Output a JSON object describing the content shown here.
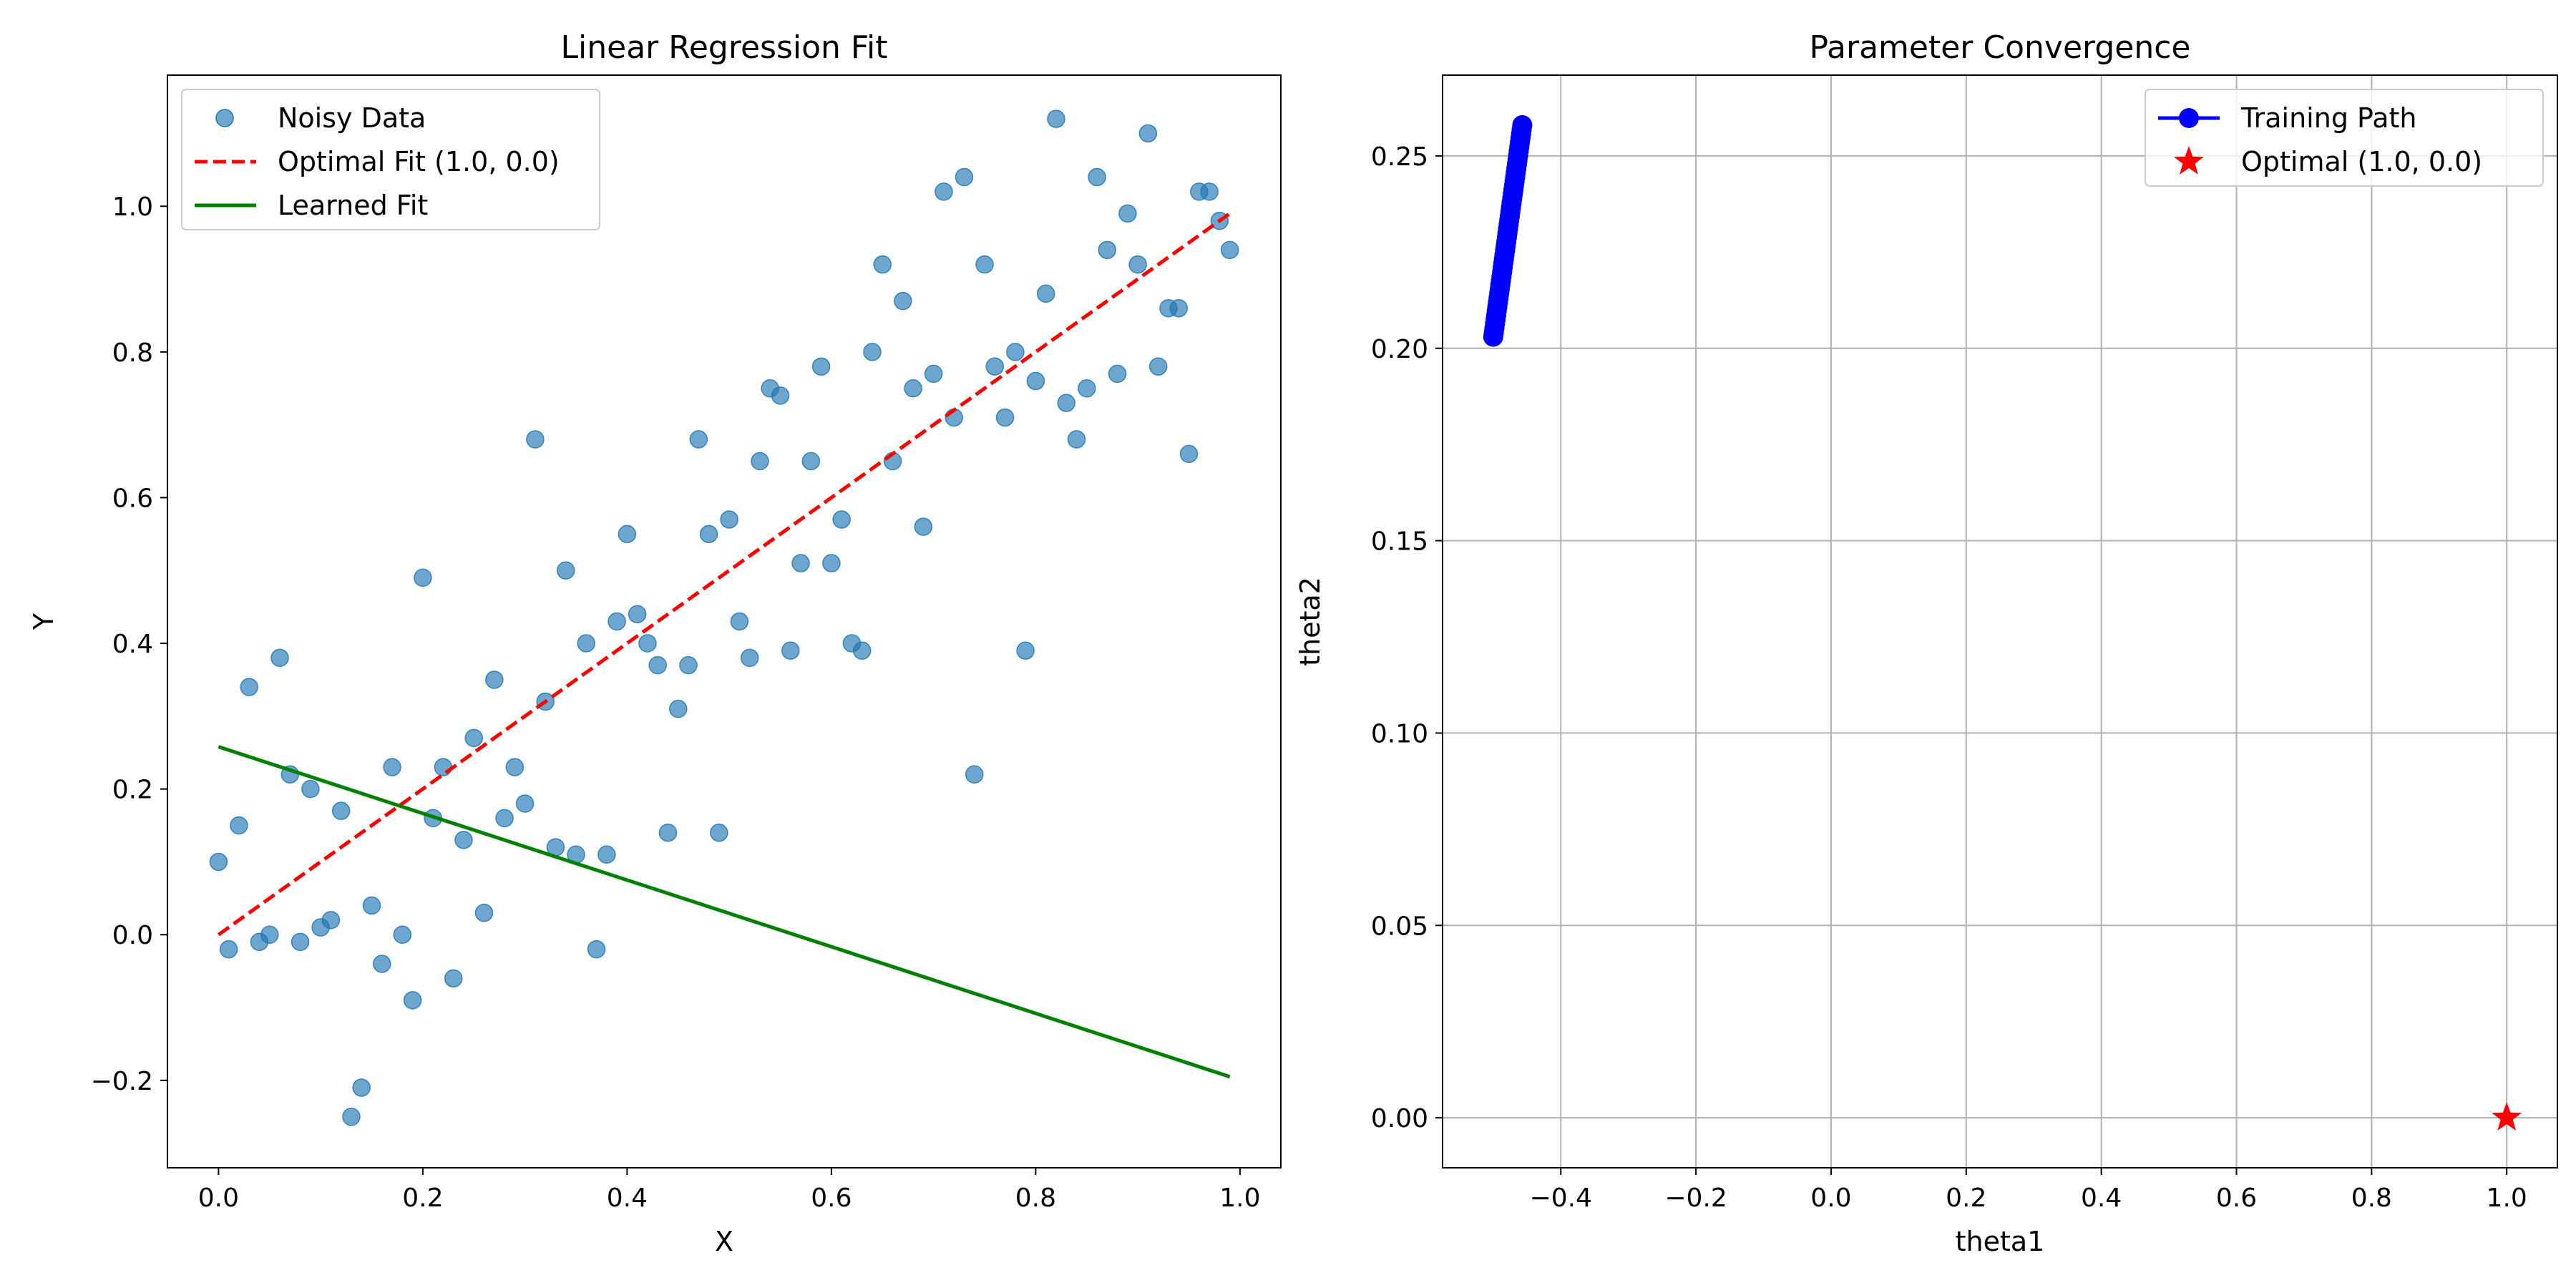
{
  "figure": {
    "background": "#ffffff"
  },
  "chart_data": [
    {
      "type": "scatter",
      "title": "Linear Regression Fit",
      "xlabel": "X",
      "ylabel": "Y",
      "xlim": [
        -0.05,
        1.04
      ],
      "ylim": [
        -0.32,
        1.18
      ],
      "grid": false,
      "legend_position": "top-left",
      "xticks": [
        0.0,
        0.2,
        0.4,
        0.6,
        0.8,
        1.0
      ],
      "xtick_labels": [
        "0.0",
        "0.2",
        "0.4",
        "0.6",
        "0.8",
        "1.0"
      ],
      "yticks": [
        -0.2,
        0.0,
        0.2,
        0.4,
        0.6,
        0.8,
        1.0
      ],
      "ytick_labels": [
        "−0.2",
        "0.0",
        "0.2",
        "0.4",
        "0.6",
        "0.8",
        "1.0"
      ],
      "series": [
        {
          "name": "Noisy Data",
          "kind": "scatter",
          "color": "#1f77b4",
          "alpha": 0.65,
          "points": [
            [
              0.0,
              0.1
            ],
            [
              0.01,
              -0.02
            ],
            [
              0.02,
              0.15
            ],
            [
              0.03,
              0.34
            ],
            [
              0.04,
              -0.01
            ],
            [
              0.05,
              0.0
            ],
            [
              0.06,
              0.38
            ],
            [
              0.07,
              0.22
            ],
            [
              0.08,
              -0.01
            ],
            [
              0.09,
              0.2
            ],
            [
              0.1,
              0.01
            ],
            [
              0.11,
              0.02
            ],
            [
              0.12,
              0.17
            ],
            [
              0.13,
              -0.25
            ],
            [
              0.14,
              -0.21
            ],
            [
              0.15,
              0.04
            ],
            [
              0.16,
              -0.04
            ],
            [
              0.17,
              0.23
            ],
            [
              0.18,
              0.0
            ],
            [
              0.19,
              -0.09
            ],
            [
              0.2,
              0.49
            ],
            [
              0.21,
              0.16
            ],
            [
              0.22,
              0.23
            ],
            [
              0.23,
              -0.06
            ],
            [
              0.24,
              0.13
            ],
            [
              0.25,
              0.27
            ],
            [
              0.26,
              0.03
            ],
            [
              0.27,
              0.35
            ],
            [
              0.28,
              0.16
            ],
            [
              0.29,
              0.23
            ],
            [
              0.3,
              0.18
            ],
            [
              0.31,
              0.68
            ],
            [
              0.32,
              0.32
            ],
            [
              0.33,
              0.12
            ],
            [
              0.34,
              0.5
            ],
            [
              0.35,
              0.11
            ],
            [
              0.36,
              0.4
            ],
            [
              0.37,
              -0.02
            ],
            [
              0.38,
              0.11
            ],
            [
              0.39,
              0.43
            ],
            [
              0.4,
              0.55
            ],
            [
              0.41,
              0.44
            ],
            [
              0.42,
              0.4
            ],
            [
              0.43,
              0.37
            ],
            [
              0.44,
              0.14
            ],
            [
              0.45,
              0.31
            ],
            [
              0.46,
              0.37
            ],
            [
              0.47,
              0.68
            ],
            [
              0.48,
              0.55
            ],
            [
              0.49,
              0.14
            ],
            [
              0.5,
              0.57
            ],
            [
              0.51,
              0.43
            ],
            [
              0.52,
              0.38
            ],
            [
              0.53,
              0.65
            ],
            [
              0.54,
              0.75
            ],
            [
              0.55,
              0.74
            ],
            [
              0.56,
              0.39
            ],
            [
              0.57,
              0.51
            ],
            [
              0.58,
              0.65
            ],
            [
              0.59,
              0.78
            ],
            [
              0.6,
              0.51
            ],
            [
              0.61,
              0.57
            ],
            [
              0.62,
              0.4
            ],
            [
              0.63,
              0.39
            ],
            [
              0.64,
              0.8
            ],
            [
              0.65,
              0.92
            ],
            [
              0.66,
              0.65
            ],
            [
              0.67,
              0.87
            ],
            [
              0.68,
              0.75
            ],
            [
              0.69,
              0.56
            ],
            [
              0.7,
              0.77
            ],
            [
              0.71,
              1.02
            ],
            [
              0.72,
              0.71
            ],
            [
              0.73,
              1.04
            ],
            [
              0.74,
              0.22
            ],
            [
              0.75,
              0.92
            ],
            [
              0.76,
              0.78
            ],
            [
              0.77,
              0.71
            ],
            [
              0.78,
              0.8
            ],
            [
              0.79,
              0.39
            ],
            [
              0.8,
              0.76
            ],
            [
              0.81,
              0.88
            ],
            [
              0.82,
              1.12
            ],
            [
              0.83,
              0.73
            ],
            [
              0.84,
              0.68
            ],
            [
              0.85,
              0.75
            ],
            [
              0.86,
              1.04
            ],
            [
              0.87,
              0.94
            ],
            [
              0.88,
              0.77
            ],
            [
              0.89,
              0.99
            ],
            [
              0.9,
              0.92
            ],
            [
              0.91,
              1.1
            ],
            [
              0.92,
              0.78
            ],
            [
              0.93,
              0.86
            ],
            [
              0.94,
              0.86
            ],
            [
              0.95,
              0.66
            ],
            [
              0.96,
              1.02
            ],
            [
              0.97,
              1.02
            ],
            [
              0.98,
              0.98
            ],
            [
              0.99,
              0.94
            ]
          ]
        },
        {
          "name": "Optimal Fit (1.0, 0.0)",
          "kind": "line",
          "style": "dashed",
          "color": "#ff0000",
          "points": [
            [
              0.0,
              0.0
            ],
            [
              0.99,
              0.99
            ]
          ]
        },
        {
          "name": "Learned Fit",
          "kind": "line",
          "style": "solid",
          "color": "#008000",
          "points": [
            [
              0.0,
              0.258
            ],
            [
              0.99,
              -0.195
            ]
          ]
        }
      ]
    },
    {
      "type": "line",
      "title": "Parameter Convergence",
      "xlabel": "theta1",
      "ylabel": "theta2",
      "xlim": [
        -0.575,
        1.075
      ],
      "ylim": [
        -0.013,
        0.271
      ],
      "grid": true,
      "legend_position": "top-right",
      "xticks": [
        -0.4,
        -0.2,
        0.0,
        0.2,
        0.4,
        0.6,
        0.8,
        1.0
      ],
      "xtick_labels": [
        "−0.4",
        "−0.2",
        "0.0",
        "0.2",
        "0.4",
        "0.6",
        "0.8",
        "1.0"
      ],
      "yticks": [
        0.0,
        0.05,
        0.1,
        0.15,
        0.2,
        0.25
      ],
      "ytick_labels": [
        "0.00",
        "0.05",
        "0.10",
        "0.15",
        "0.20",
        "0.25"
      ],
      "series": [
        {
          "name": "Training Path",
          "kind": "line-marker",
          "color": "#0000ff",
          "start": [
            -0.5,
            0.203
          ],
          "end": [
            -0.457,
            0.258
          ],
          "n_points": 50
        },
        {
          "name": "Optimal (1.0, 0.0)",
          "kind": "star",
          "color": "#ff0000",
          "points": [
            [
              1.0,
              0.0
            ]
          ]
        }
      ]
    }
  ]
}
